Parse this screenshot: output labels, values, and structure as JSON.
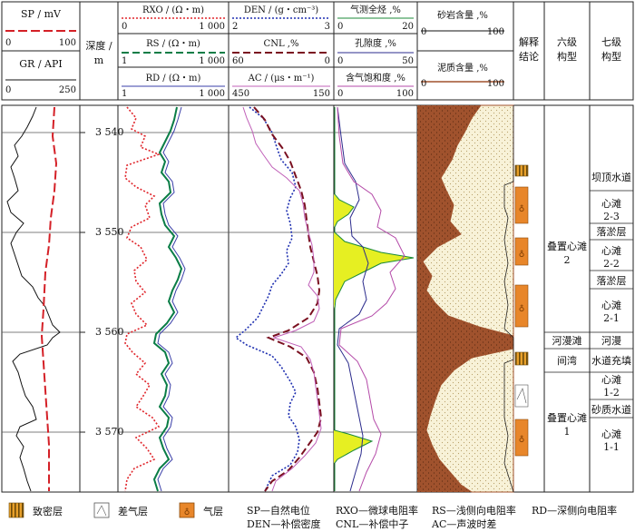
{
  "header": {
    "sp": {
      "title": "SP / mV",
      "min": "0",
      "max": "100",
      "color": "#d42027"
    },
    "gr": {
      "title": "GR / API",
      "min": "0",
      "max": "250",
      "color": "#111111"
    },
    "depth": {
      "line1": "深度 /",
      "line2": "m"
    },
    "rxo": {
      "title": "RXO / (Ω・m)",
      "min": "0",
      "max": "1 000",
      "color": "#e0252b"
    },
    "rs": {
      "title": "RS / (Ω・m)",
      "min": "1",
      "max": "1 000",
      "color": "#0a7d46"
    },
    "rd": {
      "title": "RD / (Ω・m)",
      "min": "1",
      "max": "1 000",
      "color": "#3a3fa8"
    },
    "den": {
      "title": "DEN / (g・cm⁻³)",
      "min": "2",
      "max": "3",
      "color": "#1e2fb0"
    },
    "cnl": {
      "title": "CNL ,%",
      "min": "60",
      "max": "0",
      "color": "#7a1020"
    },
    "ac": {
      "title": "AC / (μs・m⁻¹)",
      "min": "450",
      "max": "150",
      "color": "#c060b8"
    },
    "gas": {
      "title": "气测全烃 ,%",
      "min": "0",
      "max": "20",
      "color": "#1b8a3a"
    },
    "por": {
      "title": "孔隙度 ,%",
      "min": "0",
      "max": "50",
      "color": "#2b2b8c"
    },
    "sat": {
      "title": "含气饱和度 ,%",
      "min": "0",
      "max": "100",
      "color": "#b44aa8"
    },
    "sand": {
      "title": "砂岩含量 ,%",
      "min": "0",
      "max": "100"
    },
    "mud": {
      "title": "泥质含量 ,%",
      "min": "0",
      "max": "100",
      "color": "#a0522d"
    },
    "interp": {
      "line1": "解释",
      "line2": "结论"
    },
    "sixth": {
      "line1": "六级",
      "line2": "构型"
    },
    "seventh": {
      "line1": "七级",
      "line2": "构型"
    }
  },
  "depth_ticks": [
    "3 540",
    "3 550",
    "3 560",
    "3 570"
  ],
  "sixth_level": [
    {
      "text": "叠置心滩",
      "text2": "2"
    },
    {
      "text": "河漫滩",
      "text2": ""
    },
    {
      "text": "间湾",
      "text2": ""
    },
    {
      "text": "叠置心滩",
      "text2": "1"
    }
  ],
  "seventh_level": [
    {
      "text": "坝顶水道",
      "text2": ""
    },
    {
      "text": "心滩",
      "text2": "2-3"
    },
    {
      "text": "落淤层",
      "text2": ""
    },
    {
      "text": "心滩",
      "text2": "2-2"
    },
    {
      "text": "落淤层",
      "text2": ""
    },
    {
      "text": "心滩",
      "text2": "2-1"
    },
    {
      "text": "河漫",
      "text2": ""
    },
    {
      "text": "水道充填",
      "text2": ""
    },
    {
      "text": "心滩",
      "text2": "1-2"
    },
    {
      "text": "砂质水道",
      "text2": ""
    },
    {
      "text": "心滩",
      "text2": "1-1"
    }
  ],
  "legend": {
    "tight": "致密层",
    "poor": "差气层",
    "gas": "气层",
    "abbr1": [
      "SP—自然电位",
      "RXO—微球电阻率",
      "RS—浅侧向电阻率",
      "RD—深侧向电阻率"
    ],
    "abbr2": [
      "DEN—补偿密度",
      "CNL—补偿中子",
      "AC—声波时差"
    ]
  },
  "colors": {
    "sand_fill": "#f8f2d8",
    "mud_fill": "#a0522d",
    "gas_fill": "#e8862a",
    "gas_show_fill": "#e6ef22",
    "tight_fill": "#c08a12"
  }
}
